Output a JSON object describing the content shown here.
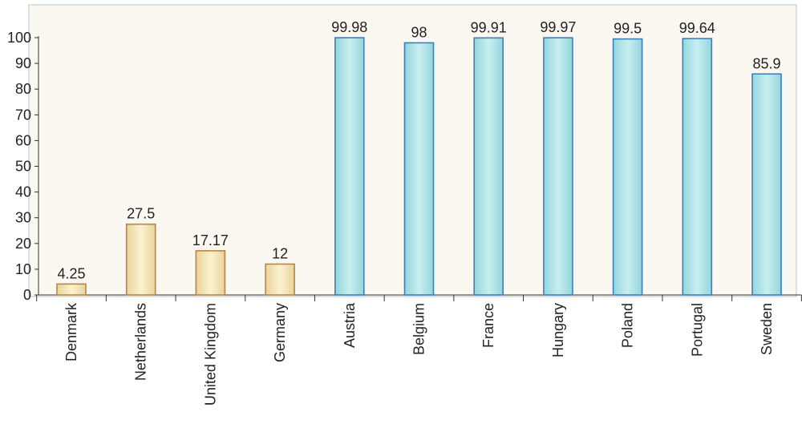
{
  "chart_data": {
    "type": "bar",
    "title": "",
    "xlabel": "",
    "ylabel": "",
    "ylim": [
      0,
      100
    ],
    "yticks": [
      0,
      10,
      20,
      30,
      40,
      50,
      60,
      70,
      80,
      90,
      100
    ],
    "grid": false,
    "categories": [
      "Denmark",
      "Netherlands",
      "United Kingdom",
      "Germany",
      "Austria",
      "Belgium",
      "France",
      "Hungary",
      "Poland",
      "Portugal",
      "Sweden"
    ],
    "values": [
      4.25,
      27.5,
      17.17,
      12,
      99.98,
      98,
      99.91,
      99.97,
      99.5,
      99.64,
      85.9
    ],
    "data_labels": [
      "4.25",
      "27.5",
      "17.17",
      "12",
      "99.98",
      "98",
      "99.91",
      "99.97",
      "99.5",
      "99.64",
      "85.9"
    ],
    "bar_groups": [
      "tan",
      "tan",
      "tan",
      "tan",
      "blue",
      "blue",
      "blue",
      "blue",
      "blue",
      "blue",
      "blue"
    ],
    "colors": {
      "plot_background": "#fbf8f2",
      "frame": "#b9c3c9",
      "axis": "#333333",
      "tan_fill_light": "#fbf3d0",
      "tan_fill_dark": "#e9d39b",
      "tan_stroke": "#b8854a",
      "blue_fill_light": "#c9eef0",
      "blue_fill_dark": "#93d6dd",
      "blue_stroke": "#3b7fbd"
    }
  }
}
